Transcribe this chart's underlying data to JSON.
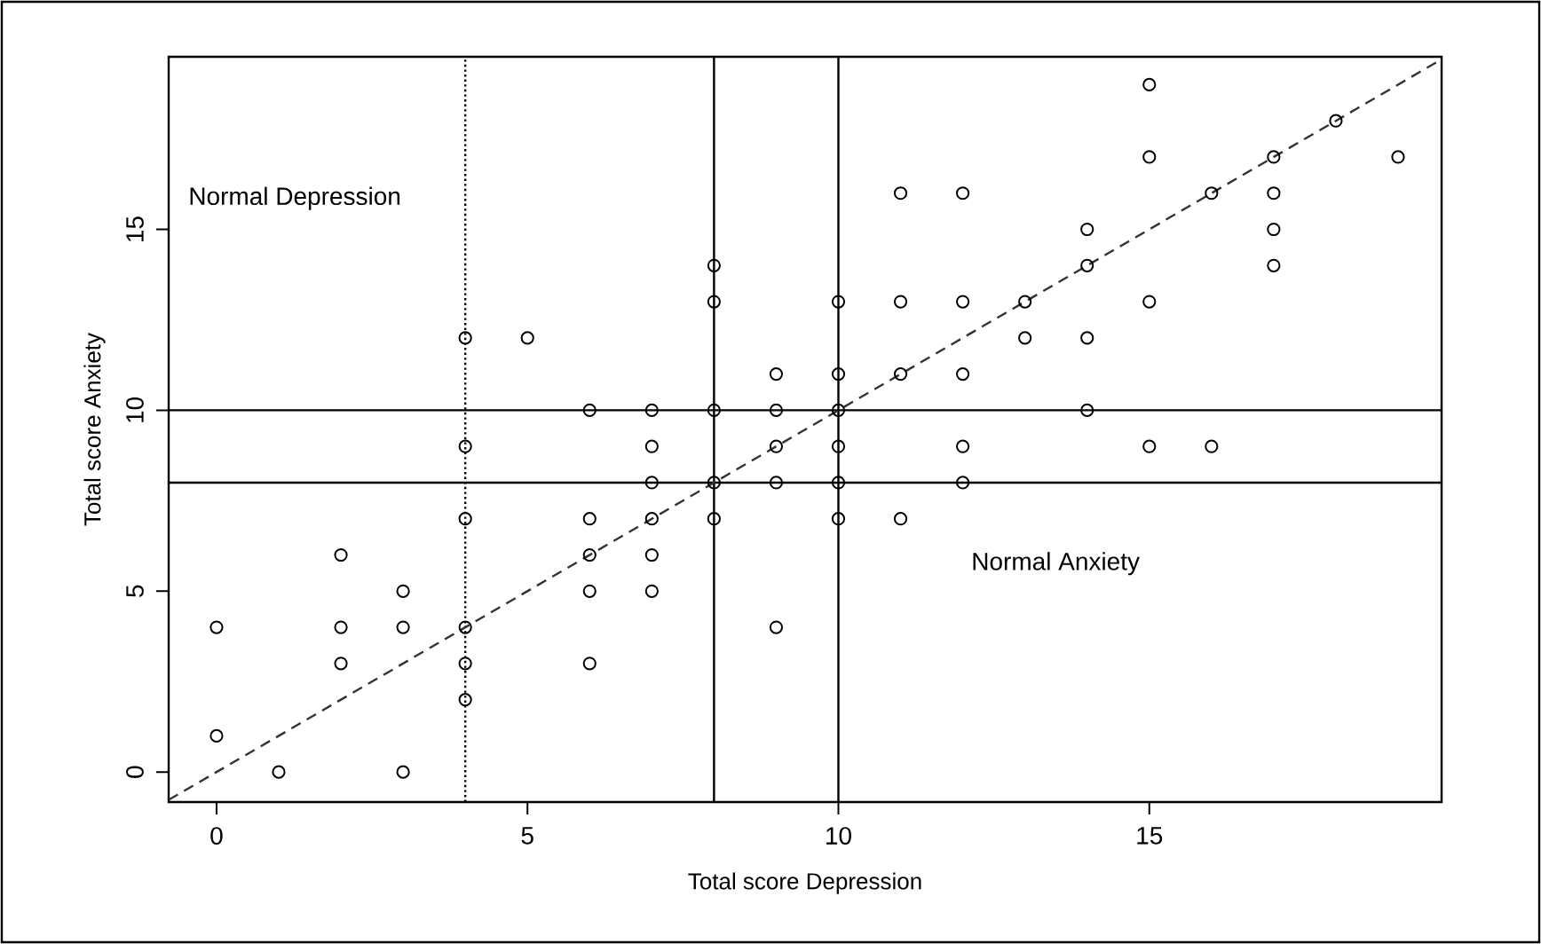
{
  "chart_data": {
    "type": "scatter",
    "xlabel": "Total score Depression",
    "ylabel": "Total score Anxiety",
    "xlim": [
      -0.77,
      19.7
    ],
    "ylim": [
      -0.83,
      19.77
    ],
    "xticks": [
      0,
      5,
      10,
      15
    ],
    "yticks": [
      0,
      5,
      10,
      15
    ],
    "grid": false,
    "series": [
      {
        "color": "#000000",
        "marker": "circle",
        "x": [
          0,
          0,
          1,
          2,
          2,
          2,
          3,
          3,
          3,
          4,
          4,
          4,
          4,
          4,
          4,
          5,
          6,
          6,
          6,
          6,
          6,
          7,
          7,
          7,
          7,
          7,
          7,
          8,
          8,
          8,
          8,
          8,
          9,
          9,
          9,
          9,
          9,
          10,
          10,
          10,
          10,
          10,
          10,
          11,
          11,
          11,
          11,
          12,
          12,
          12,
          12,
          12,
          13,
          13,
          14,
          14,
          14,
          14,
          15,
          15,
          15,
          15,
          16,
          16,
          17,
          17,
          17,
          17,
          18,
          19
        ],
        "values": [
          4,
          1,
          0,
          6,
          4,
          3,
          5,
          4,
          0,
          12,
          9,
          7,
          4,
          3,
          2,
          12,
          10,
          7,
          6,
          5,
          3,
          10,
          9,
          8,
          7,
          6,
          5,
          14,
          13,
          10,
          8,
          7,
          11,
          10,
          9,
          8,
          4,
          13,
          11,
          10,
          9,
          8,
          7,
          16,
          13,
          11,
          7,
          16,
          13,
          11,
          9,
          8,
          13,
          12,
          15,
          14,
          12,
          10,
          19,
          17,
          13,
          9,
          16,
          9,
          17,
          16,
          15,
          14,
          18,
          17
        ]
      },
      {
        "type": "line",
        "color": "#333333",
        "line_style": "dashed",
        "marker": "none",
        "x": [
          -0.77,
          19.7
        ],
        "values": [
          -0.77,
          19.7
        ]
      }
    ],
    "ref_lines": [
      {
        "axis": "x",
        "value": 4,
        "line_style": "dotted",
        "color": "#000000"
      },
      {
        "axis": "x",
        "value": 8,
        "line_style": "solid",
        "color": "#000000"
      },
      {
        "axis": "x",
        "value": 10,
        "line_style": "solid",
        "color": "#000000"
      },
      {
        "axis": "y",
        "value": 8,
        "line_style": "solid",
        "color": "#000000"
      },
      {
        "axis": "y",
        "value": 10,
        "line_style": "solid",
        "color": "#000000"
      }
    ],
    "annotations": [
      "Normal Depression",
      "Normal Anxiety"
    ]
  }
}
